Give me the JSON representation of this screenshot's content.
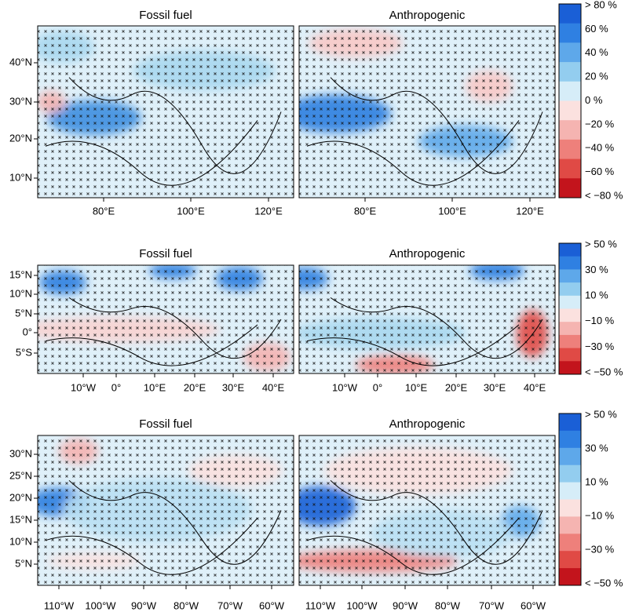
{
  "rows": [
    {
      "titles": [
        "Fossil fuel",
        "Anthropogenic"
      ],
      "lat_labels": [
        "40°N",
        "30°N",
        "20°N",
        "10°N"
      ],
      "lon_labels": [
        "80°E",
        "100°E",
        "120°E"
      ],
      "colorbar_labels": [
        "> 80 %",
        "60 %",
        "40 %",
        "20 %",
        "0 %",
        "−20 %",
        "−40 %",
        "−60 %",
        "< −80 %"
      ]
    },
    {
      "titles": [
        "Fossil fuel",
        "Anthropogenic"
      ],
      "lat_labels": [
        "15°N",
        "10°N",
        "5°N",
        "0°",
        "5°S"
      ],
      "lon_labels": [
        "10°W",
        "0°",
        "10°E",
        "20°E",
        "30°E",
        "40°E"
      ],
      "colorbar_labels": [
        "> 50 %",
        "30 %",
        "10 %",
        "−10 %",
        "−30 %",
        "< −50 %"
      ]
    },
    {
      "titles": [
        "Fossil fuel",
        "Anthropogenic"
      ],
      "lat_labels": [
        "30°N",
        "25°N",
        "20°N",
        "15°N",
        "10°N",
        "5°N"
      ],
      "lon_labels": [
        "110°W",
        "100°W",
        "90°W",
        "80°W",
        "70°W",
        "60°W"
      ],
      "colorbar_labels": [
        "> 50 %",
        "30 %",
        "10 %",
        "−10 %",
        "−30 %",
        "< −50 %"
      ]
    }
  ]
}
